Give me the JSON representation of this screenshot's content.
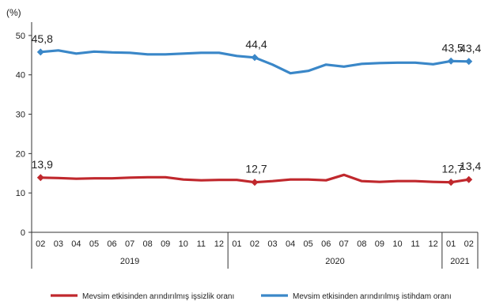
{
  "chart_data": {
    "type": "line",
    "y_unit": "(%)",
    "ylim": [
      0,
      55
    ],
    "yticks": [
      0,
      10,
      20,
      30,
      40,
      50
    ],
    "grid": false,
    "categories": [
      "02",
      "03",
      "04",
      "05",
      "06",
      "07",
      "08",
      "09",
      "10",
      "11",
      "12",
      "01",
      "02",
      "03",
      "04",
      "05",
      "06",
      "07",
      "08",
      "09",
      "10",
      "11",
      "12",
      "01",
      "02"
    ],
    "year_groups": [
      {
        "label": "2019",
        "start": 0,
        "end": 10
      },
      {
        "label": "2020",
        "start": 11,
        "end": 22
      },
      {
        "label": "2021",
        "start": 23,
        "end": 24
      }
    ],
    "legend_position": "bottom",
    "series": [
      {
        "name": "Mevsim etkisinden arındırılmış işsizlik oranı",
        "color": "#c0282d",
        "values": [
          13.9,
          13.8,
          13.6,
          13.7,
          13.7,
          13.9,
          14.0,
          14.0,
          13.4,
          13.2,
          13.3,
          13.3,
          12.7,
          13.0,
          13.4,
          13.4,
          13.2,
          14.6,
          13.0,
          12.8,
          13.0,
          13.0,
          12.8,
          12.7,
          13.4
        ],
        "labels": [
          {
            "index": 0,
            "text": "13,9"
          },
          {
            "index": 12,
            "text": "12,7"
          },
          {
            "index": 23,
            "text": "12,7"
          },
          {
            "index": 24,
            "text": "13,4"
          }
        ]
      },
      {
        "name": "Mevsim etkisinden arındırılmış istihdam oranı",
        "color": "#3a87c8",
        "values": [
          45.8,
          46.2,
          45.4,
          45.9,
          45.7,
          45.6,
          45.2,
          45.2,
          45.4,
          45.6,
          45.6,
          44.8,
          44.4,
          42.6,
          40.4,
          41.0,
          42.6,
          42.1,
          42.8,
          43.0,
          43.1,
          43.1,
          42.7,
          43.5,
          43.4
        ],
        "labels": [
          {
            "index": 0,
            "text": "45,8"
          },
          {
            "index": 12,
            "text": "44,4"
          },
          {
            "index": 23,
            "text": "43,5"
          },
          {
            "index": 24,
            "text": "43,4"
          }
        ]
      }
    ]
  }
}
